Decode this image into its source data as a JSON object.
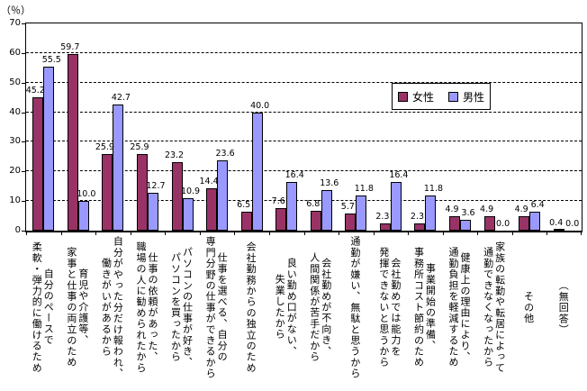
{
  "y_axis": {
    "unit_label": "（％）",
    "tick_labels": [
      "0",
      "10",
      "20",
      "30",
      "40",
      "50",
      "60",
      "70"
    ],
    "max": 70
  },
  "legend": {
    "items": [
      {
        "label": "女性",
        "color": "#993366"
      },
      {
        "label": "男性",
        "color": "#9999FF"
      }
    ]
  },
  "chart_data": {
    "type": "bar",
    "title": "",
    "xlabel": "",
    "ylabel": "（％）",
    "ylim": [
      0,
      70
    ],
    "grid": "horizontal-dashed",
    "legend_position": "inside-top-right",
    "categories": [
      "自分のペースで\n柔軟・弾力的に働けるため",
      "育児や介護等、\n家事と仕事の両立のため",
      "自分がやった分だけ報われ、\n働きがいがあるから",
      "仕事の依頼があった、\n職場の人に勧められたから",
      "パソコンの仕事が好き、\nパソコンを買ったから",
      "仕事を選べる、自分の\n専門分野の仕事ができるから",
      "会社勤務からの独立のため",
      "良い勤め口がない、\n失業したから",
      "会社勤めが不向き、\n人間関係が苦手だから",
      "通勤が嫌い、無駄と思うから",
      "会社勤めでは能力を\n発揮できないと思うから",
      "事業開始の準備、\n事務所コスト節約のため",
      "健康上の理由により、\n通勤負担を軽減するため",
      "家族の転勤や転居によって\n通勤できなくなったから",
      "その他",
      "（無回答）"
    ],
    "series": [
      {
        "name": "女性",
        "color": "#993366",
        "values": [
          45.2,
          59.7,
          25.9,
          25.9,
          23.2,
          14.4,
          6.5,
          7.6,
          6.8,
          5.7,
          2.3,
          2.3,
          4.9,
          4.9,
          4.9,
          0.4
        ]
      },
      {
        "name": "男性",
        "color": "#9999FF",
        "values": [
          55.5,
          10.0,
          42.7,
          12.7,
          10.9,
          23.6,
          40.0,
          16.4,
          13.6,
          11.8,
          16.4,
          11.8,
          3.6,
          0.0,
          6.4,
          0.0
        ]
      }
    ]
  }
}
